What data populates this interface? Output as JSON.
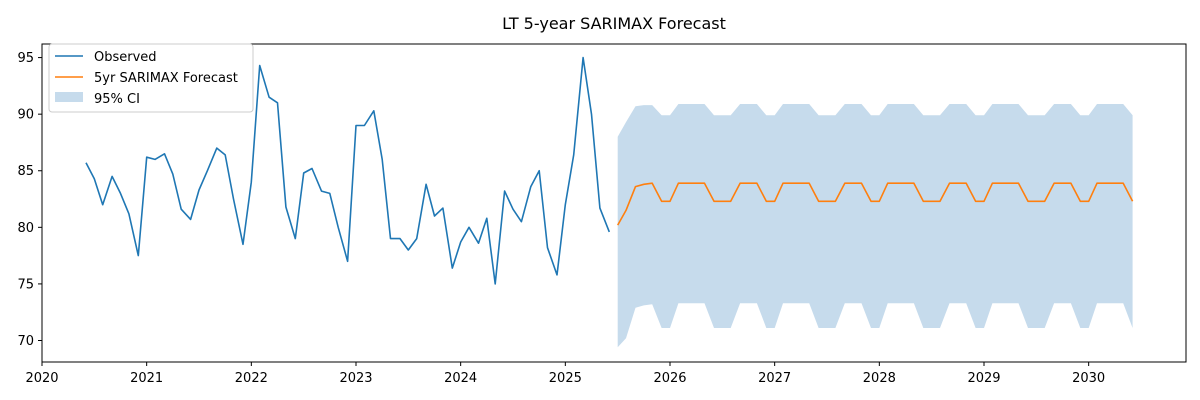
{
  "chart_data": {
    "type": "line",
    "title": "LT 5-year SARIMAX Forecast",
    "xlabel": "",
    "ylabel": "",
    "xlim": [
      2020.0,
      2030.93
    ],
    "ylim": [
      68.1,
      96.2
    ],
    "x_ticks": [
      "2020",
      "2021",
      "2022",
      "2023",
      "2024",
      "2025",
      "2026",
      "2027",
      "2028",
      "2029",
      "2030"
    ],
    "y_ticks": [
      "70",
      "75",
      "80",
      "85",
      "90",
      "95"
    ],
    "grid": false,
    "legend": {
      "placement": "top-left",
      "entries": [
        "Observed",
        "5yr SARIMAX Forecast",
        "95% CI"
      ]
    },
    "colors": {
      "observed": "#1f77b4",
      "forecast": "#ff7f0e",
      "ci": "#c6dbec"
    },
    "observed": {
      "name": "Observed",
      "x": [
        2020.42,
        2020.5,
        2020.58,
        2020.67,
        2020.75,
        2020.83,
        2020.92,
        2021.0,
        2021.08,
        2021.17,
        2021.25,
        2021.33,
        2021.42,
        2021.5,
        2021.58,
        2021.67,
        2021.75,
        2021.83,
        2021.92,
        2022.0,
        2022.08,
        2022.17,
        2022.25,
        2022.33,
        2022.42,
        2022.5,
        2022.58,
        2022.67,
        2022.75,
        2022.83,
        2022.92,
        2023.0,
        2023.08,
        2023.17,
        2023.25,
        2023.33,
        2023.42,
        2023.5,
        2023.58,
        2023.67,
        2023.75,
        2023.83,
        2023.92,
        2024.0,
        2024.08,
        2024.17,
        2024.25,
        2024.33,
        2024.42,
        2024.5,
        2024.58,
        2024.67,
        2024.75,
        2024.83,
        2024.92,
        2025.0,
        2025.08,
        2025.17,
        2025.25,
        2025.33,
        2025.42
      ],
      "y": [
        85.7,
        84.3,
        82.0,
        84.5,
        83.0,
        81.2,
        77.5,
        86.2,
        86.0,
        86.5,
        84.7,
        81.6,
        80.7,
        83.3,
        85.0,
        87.0,
        86.4,
        82.5,
        78.5,
        84.0,
        94.3,
        91.5,
        91.0,
        81.8,
        79.0,
        84.8,
        85.2,
        83.2,
        83.0,
        80.0,
        77.0,
        89.0,
        89.0,
        90.3,
        86.0,
        79.0,
        79.0,
        78.0,
        79.0,
        83.8,
        81.0,
        81.7,
        76.4,
        78.7,
        80.0,
        78.6,
        80.8,
        75.0,
        83.2,
        81.6,
        80.5,
        83.6,
        85.0,
        78.2,
        75.8,
        82.0,
        86.4,
        95.0,
        90.0,
        81.7,
        79.6
      ]
    },
    "forecast": {
      "name": "5yr SARIMAX Forecast",
      "x": [
        2025.5,
        2025.58,
        2025.67,
        2025.75,
        2025.83,
        2025.92,
        2026.0,
        2026.08,
        2026.17,
        2026.25,
        2026.33,
        2026.42,
        2026.5,
        2026.58,
        2026.67,
        2026.75,
        2026.83,
        2026.92,
        2027.0,
        2027.08,
        2027.17,
        2027.25,
        2027.33,
        2027.42,
        2027.5,
        2027.58,
        2027.67,
        2027.75,
        2027.83,
        2027.92,
        2028.0,
        2028.08,
        2028.17,
        2028.25,
        2028.33,
        2028.42,
        2028.5,
        2028.58,
        2028.67,
        2028.75,
        2028.83,
        2028.92,
        2029.0,
        2029.08,
        2029.17,
        2029.25,
        2029.33,
        2029.42,
        2029.5,
        2029.58,
        2029.67,
        2029.75,
        2029.83,
        2029.92,
        2030.0,
        2030.08,
        2030.17,
        2030.25,
        2030.33,
        2030.42
      ],
      "y": [
        80.2,
        81.5,
        83.6,
        83.8,
        83.9,
        82.3,
        82.3,
        83.9,
        83.9,
        83.9,
        83.9,
        82.3,
        82.3,
        82.3,
        83.9,
        83.9,
        83.9,
        82.3,
        82.3,
        83.9,
        83.9,
        83.9,
        83.9,
        82.3,
        82.3,
        82.3,
        83.9,
        83.9,
        83.9,
        82.3,
        82.3,
        83.9,
        83.9,
        83.9,
        83.9,
        82.3,
        82.3,
        82.3,
        83.9,
        83.9,
        83.9,
        82.3,
        82.3,
        83.9,
        83.9,
        83.9,
        83.9,
        82.3,
        82.3,
        82.3,
        83.9,
        83.9,
        83.9,
        82.3,
        82.3,
        83.9,
        83.9,
        83.9,
        83.9,
        82.3
      ]
    },
    "ci_upper": [
      88.0,
      89.3,
      90.7,
      90.8,
      90.8,
      89.9,
      89.9,
      90.9,
      90.9,
      90.9,
      90.9,
      89.9,
      89.9,
      89.9,
      90.9,
      90.9,
      90.9,
      89.9,
      89.9,
      90.9,
      90.9,
      90.9,
      90.9,
      89.9,
      89.9,
      89.9,
      90.9,
      90.9,
      90.9,
      89.9,
      89.9,
      90.9,
      90.9,
      90.9,
      90.9,
      89.9,
      89.9,
      89.9,
      90.9,
      90.9,
      90.9,
      89.9,
      89.9,
      90.9,
      90.9,
      90.9,
      90.9,
      89.9,
      89.9,
      89.9,
      90.9,
      90.9,
      90.9,
      89.9,
      89.9,
      90.9,
      90.9,
      90.9,
      90.9,
      89.9
    ],
    "ci_lower": [
      69.4,
      70.2,
      72.9,
      73.1,
      73.2,
      71.1,
      71.1,
      73.3,
      73.3,
      73.3,
      73.3,
      71.1,
      71.1,
      71.1,
      73.3,
      73.3,
      73.3,
      71.1,
      71.1,
      73.3,
      73.3,
      73.3,
      73.3,
      71.1,
      71.1,
      71.1,
      73.3,
      73.3,
      73.3,
      71.1,
      71.1,
      73.3,
      73.3,
      73.3,
      73.3,
      71.1,
      71.1,
      71.1,
      73.3,
      73.3,
      73.3,
      71.1,
      71.1,
      73.3,
      73.3,
      73.3,
      73.3,
      71.1,
      71.1,
      71.1,
      73.3,
      73.3,
      73.3,
      71.1,
      71.1,
      73.3,
      73.3,
      73.3,
      73.3,
      71.1
    ]
  }
}
